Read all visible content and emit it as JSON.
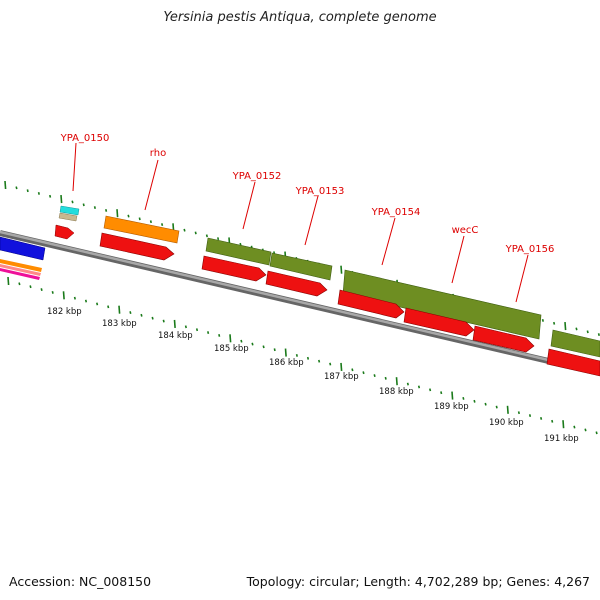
{
  "title": "Yersinia pestis Antiqua, complete genome",
  "footer": {
    "accession": "Accession: NC_008150",
    "summary": "Topology: circular; Length: 4,702,289 bp; Genes: 4,267"
  },
  "colors": {
    "backbone": "#8a8a8a",
    "tick": "#1a7a1a",
    "cds_red": "#ee1111",
    "olive": "#6e8e22",
    "orange": "#ff8c00",
    "cyan": "#22dddd",
    "tan": "#c8b890",
    "blue": "#1111dd",
    "label_red": "#dd0000"
  },
  "gene_labels": [
    {
      "name": "gene-label-ypa0150",
      "text": "YPA_0150"
    },
    {
      "name": "gene-label-rho",
      "text": "rho"
    },
    {
      "name": "gene-label-ypa0152",
      "text": "YPA_0152"
    },
    {
      "name": "gene-label-ypa0153",
      "text": "YPA_0153"
    },
    {
      "name": "gene-label-ypa0154",
      "text": "YPA_0154"
    },
    {
      "name": "gene-label-wecc",
      "text": "wecC"
    },
    {
      "name": "gene-label-ypa0156",
      "text": "YPA_0156"
    }
  ],
  "kbp_labels": [
    "182 kbp",
    "183 kbp",
    "184 kbp",
    "185 kbp",
    "186 kbp",
    "187 kbp",
    "188 kbp",
    "189 kbp",
    "190 kbp",
    "191 kbp"
  ]
}
